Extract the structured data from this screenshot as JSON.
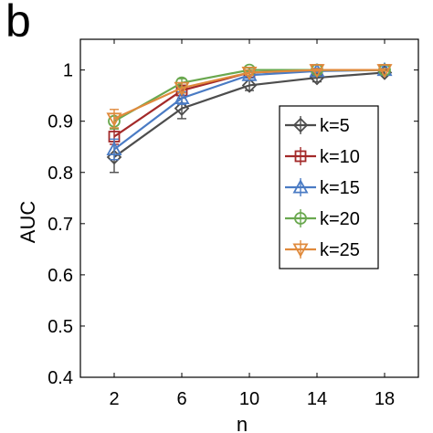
{
  "panel_label": "b",
  "chart_data": {
    "type": "line",
    "title": "",
    "xlabel": "n",
    "ylabel": "AUC",
    "x": [
      2,
      6,
      10,
      14,
      18
    ],
    "xticks": [
      "2",
      "6",
      "10",
      "14",
      "18"
    ],
    "yticks": [
      "0.4",
      "0.5",
      "0.6",
      "0.7",
      "0.8",
      "0.9",
      "1"
    ],
    "xlim": [
      0,
      20
    ],
    "ylim": [
      0.4,
      1.06
    ],
    "grid": false,
    "legend_position": "right",
    "series": [
      {
        "name": "k=5",
        "color": "#4d4d4d",
        "marker": "diamond",
        "values": [
          0.83,
          0.925,
          0.97,
          0.985,
          0.995
        ],
        "errors": [
          0.03,
          0.02,
          0.01,
          0.008,
          0.005
        ]
      },
      {
        "name": "k=10",
        "color": "#a32929",
        "marker": "square",
        "values": [
          0.87,
          0.96,
          0.995,
          1.0,
          1.0
        ],
        "errors": [
          0.015,
          0.01,
          0.005,
          0.003,
          0.002
        ]
      },
      {
        "name": "k=15",
        "color": "#4a7bc4",
        "marker": "triangle-up",
        "values": [
          0.845,
          0.945,
          0.99,
          0.998,
          1.0
        ],
        "errors": [
          0.02,
          0.012,
          0.006,
          0.003,
          0.002
        ]
      },
      {
        "name": "k=20",
        "color": "#6aa84f",
        "marker": "circle",
        "values": [
          0.9,
          0.975,
          1.0,
          1.0,
          1.0
        ],
        "errors": [
          0.015,
          0.008,
          0.004,
          0.002,
          0.002
        ]
      },
      {
        "name": "k=25",
        "color": "#e08a3c",
        "marker": "triangle-down",
        "values": [
          0.905,
          0.965,
          0.995,
          1.0,
          1.0
        ],
        "errors": [
          0.018,
          0.01,
          0.005,
          0.002,
          0.002
        ]
      }
    ]
  }
}
